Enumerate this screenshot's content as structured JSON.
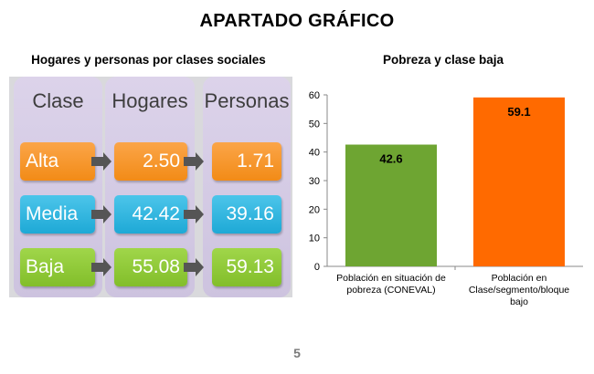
{
  "page": {
    "title": "APARTADO GRÁFICO",
    "page_number": "5"
  },
  "table": {
    "title": "Hogares y personas por clases sociales",
    "headers": [
      "Clase",
      "Hogares",
      "Personas"
    ],
    "rows": [
      {
        "clase": "Alta",
        "hogares": "2.50",
        "personas": "1.71",
        "color": "#f7941d"
      },
      {
        "clase": "Media",
        "hogares": "42.42",
        "personas": "39.16",
        "color": "#29b6e0"
      },
      {
        "clase": "Baja",
        "hogares": "55.08",
        "personas": "59.13",
        "color": "#8dc63f"
      }
    ]
  },
  "chart_data": {
    "type": "bar",
    "title": "Pobreza y clase baja",
    "categories": [
      "Población en situación de pobreza (CONEVAL)",
      "Población en Clase/segmento/bloque bajo"
    ],
    "category_lines": [
      [
        "Población en situación de",
        "pobreza (CONEVAL)"
      ],
      [
        "Población en",
        "Clase/segmento/bloque",
        "bajo"
      ]
    ],
    "values": [
      42.6,
      59.1
    ],
    "value_labels": [
      "42.6",
      "59.1"
    ],
    "colors": [
      "#6ea532",
      "#ff6a00"
    ],
    "ylim": [
      0,
      60
    ],
    "yticks": [
      "0",
      "10",
      "20",
      "30",
      "40",
      "50",
      "60"
    ],
    "xlabel": "",
    "ylabel": "",
    "grid": false
  }
}
